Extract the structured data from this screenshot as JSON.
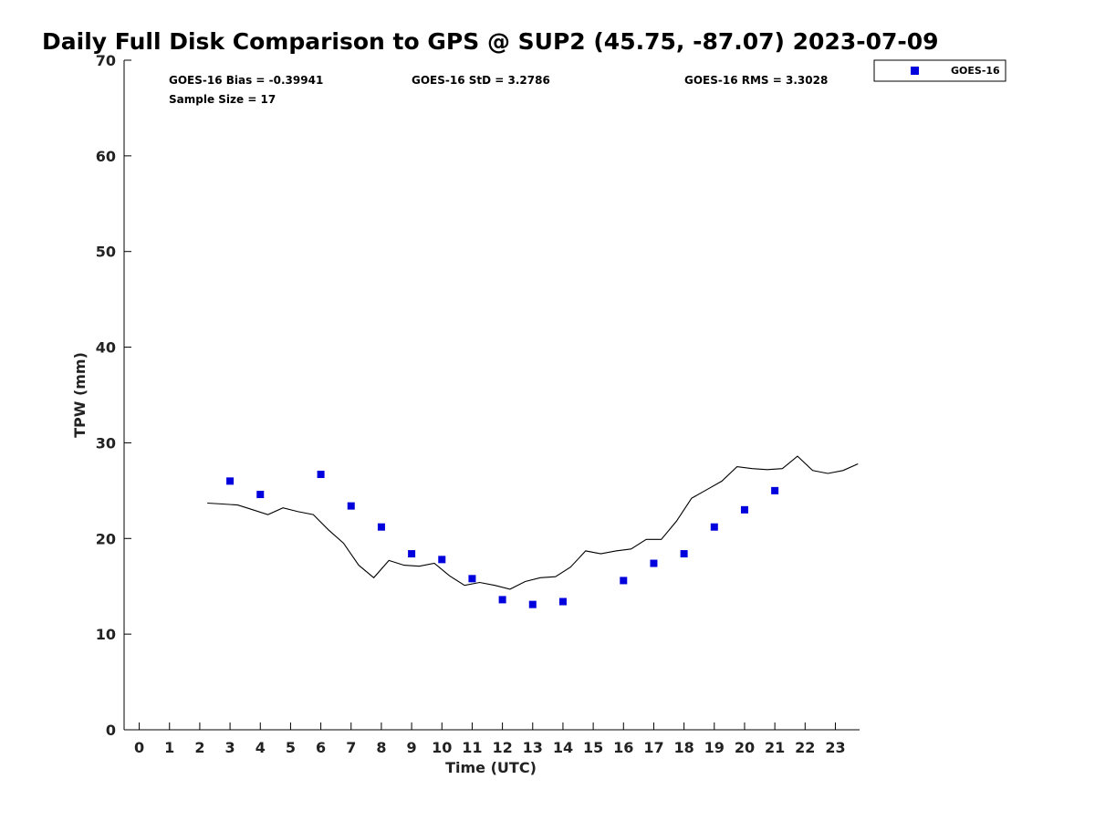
{
  "chart_data": {
    "type": "line",
    "title": "Daily Full Disk Comparison to GPS @ SUP2 (45.75, -87.07) 2023-07-09",
    "xlabel": "Time (UTC)",
    "ylabel": "TPW (mm)",
    "xlim": [
      -0.5,
      23.8
    ],
    "ylim": [
      0,
      70
    ],
    "x_ticks": [
      "0",
      "1",
      "2",
      "3",
      "4",
      "5",
      "6",
      "7",
      "8",
      "9",
      "10",
      "11",
      "12",
      "13",
      "14",
      "15",
      "16",
      "17",
      "18",
      "19",
      "20",
      "21",
      "22",
      "23"
    ],
    "y_ticks": [
      "0",
      "10",
      "20",
      "30",
      "40",
      "50",
      "60",
      "70"
    ],
    "grid": false,
    "legend_position": "top-right",
    "stats": {
      "bias": "GOES-16 Bias = -0.39941",
      "std": "GOES-16 StD = 3.2786",
      "rms": "GOES-16 RMS = 3.3028",
      "sample": "Sample Size = 17"
    },
    "series": [
      {
        "name": "GOES-16",
        "kind": "scatter",
        "color": "#0000dd",
        "marker": "square",
        "x": [
          3,
          4,
          6,
          7,
          8,
          9,
          10,
          11,
          12,
          13,
          14,
          16,
          17,
          18,
          19,
          20,
          21
        ],
        "y": [
          26.0,
          24.6,
          26.7,
          23.4,
          21.2,
          18.4,
          17.8,
          15.8,
          13.6,
          13.1,
          13.4,
          15.6,
          17.4,
          18.4,
          21.2,
          23.0,
          25.0
        ]
      },
      {
        "kind": "line",
        "color": "#000000",
        "x": [
          2.25,
          2.75,
          3.25,
          3.75,
          4.25,
          4.75,
          5.25,
          5.75,
          6.25,
          6.75,
          7.25,
          7.75,
          8.25,
          8.75,
          9.25,
          9.75,
          10.25,
          10.75,
          11.25,
          11.75,
          12.25,
          12.75,
          13.25,
          13.75,
          14.25,
          14.75,
          15.25,
          15.75,
          16.25,
          16.75,
          17.25,
          17.75,
          18.25,
          18.75,
          19.25,
          19.75,
          20.25,
          20.75,
          21.25,
          21.75,
          22.25,
          22.75,
          23.25,
          23.75
        ],
        "y": [
          23.7,
          23.6,
          23.5,
          23.0,
          22.5,
          23.2,
          22.8,
          22.5,
          20.9,
          19.5,
          17.2,
          15.9,
          17.7,
          17.2,
          17.1,
          17.4,
          16.1,
          15.1,
          15.4,
          15.1,
          14.7,
          15.5,
          15.9,
          16.0,
          17.0,
          18.7,
          18.4,
          18.7,
          18.9,
          19.9,
          19.9,
          21.8,
          24.2,
          25.1,
          26.0,
          27.5,
          27.3,
          27.2,
          27.3,
          28.6,
          27.1,
          26.8,
          27.1,
          27.8
        ]
      }
    ]
  }
}
